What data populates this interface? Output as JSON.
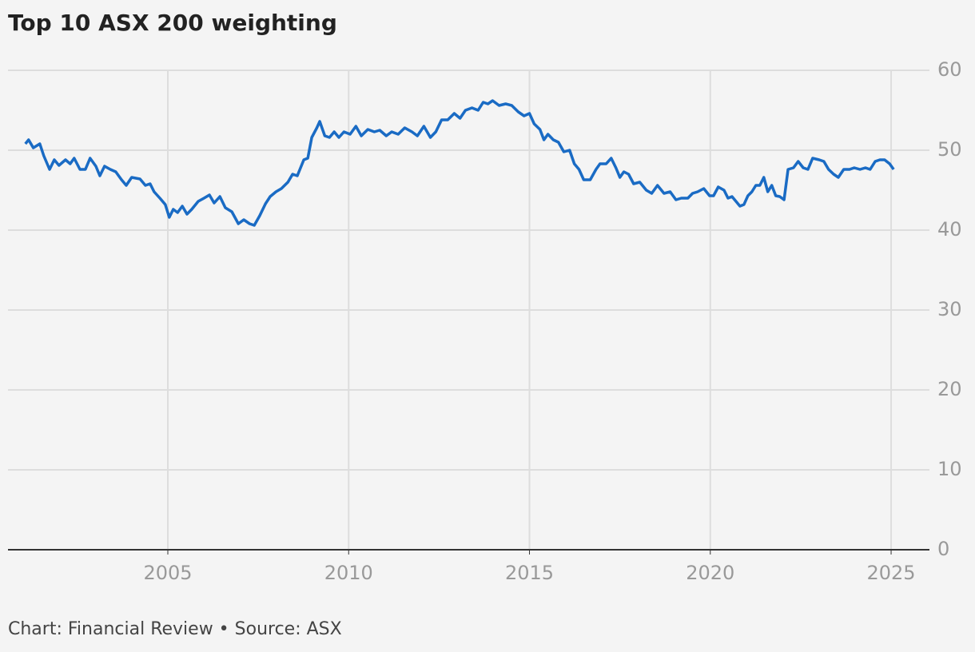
{
  "chart_data": {
    "type": "line",
    "title": "Top 10 ASX 200 weighting",
    "source": "Chart: Financial Review • Source: ASX",
    "x": [
      2001.06,
      2001.15,
      2001.28,
      2001.46,
      2001.57,
      2001.73,
      2001.86,
      2001.99,
      2002.17,
      2002.3,
      2002.41,
      2002.57,
      2002.72,
      2002.85,
      2003.01,
      2003.12,
      2003.25,
      2003.41,
      2003.56,
      2003.72,
      2003.85,
      2004.0,
      2004.23,
      2004.38,
      2004.51,
      2004.62,
      2004.78,
      2004.93,
      2005.04,
      2005.15,
      2005.27,
      2005.4,
      2005.53,
      2005.66,
      2005.84,
      2006.0,
      2006.15,
      2006.28,
      2006.44,
      2006.59,
      2006.77,
      2006.95,
      2007.1,
      2007.26,
      2007.39,
      2007.54,
      2007.7,
      2007.83,
      2007.99,
      2008.14,
      2008.32,
      2008.45,
      2008.58,
      2008.76,
      2008.87,
      2008.98,
      2009.12,
      2009.2,
      2009.34,
      2009.47,
      2009.6,
      2009.73,
      2009.87,
      2010.04,
      2010.2,
      2010.35,
      2010.53,
      2010.71,
      2010.86,
      2011.04,
      2011.19,
      2011.37,
      2011.55,
      2011.75,
      2011.9,
      2012.08,
      2012.26,
      2012.41,
      2012.57,
      2012.74,
      2012.92,
      2013.08,
      2013.23,
      2013.41,
      2013.58,
      2013.72,
      2013.85,
      2013.98,
      2014.16,
      2014.34,
      2014.51,
      2014.69,
      2014.85,
      2015.0,
      2015.13,
      2015.29,
      2015.4,
      2015.51,
      2015.66,
      2015.8,
      2015.95,
      2016.11,
      2016.24,
      2016.37,
      2016.5,
      2016.68,
      2016.84,
      2016.95,
      2017.12,
      2017.26,
      2017.39,
      2017.5,
      2017.61,
      2017.74,
      2017.88,
      2018.05,
      2018.23,
      2018.38,
      2018.54,
      2018.72,
      2018.89,
      2019.05,
      2019.2,
      2019.38,
      2019.51,
      2019.65,
      2019.82,
      2019.98,
      2020.09,
      2020.22,
      2020.38,
      2020.49,
      2020.6,
      2020.71,
      2020.82,
      2020.93,
      2021.04,
      2021.15,
      2021.26,
      2021.37,
      2021.48,
      2021.59,
      2021.7,
      2021.81,
      2021.92,
      2022.04,
      2022.15,
      2022.3,
      2022.43,
      2022.57,
      2022.7,
      2022.83,
      2023.01,
      2023.14,
      2023.27,
      2023.41,
      2023.54,
      2023.69,
      2023.85,
      2023.98,
      2024.14,
      2024.29,
      2024.42,
      2024.56,
      2024.69,
      2024.82,
      2024.96,
      2025.07
    ],
    "series": [
      {
        "name": "Top 10 weighting",
        "color": "#1a6bc4",
        "values": [
          50.8,
          51.3,
          50.3,
          50.8,
          49.3,
          47.6,
          48.8,
          48.1,
          48.8,
          48.3,
          49.0,
          47.6,
          47.6,
          49.0,
          48.0,
          46.8,
          48.0,
          47.6,
          47.3,
          46.3,
          45.6,
          46.6,
          46.4,
          45.6,
          45.8,
          44.8,
          44.0,
          43.2,
          41.6,
          42.6,
          42.2,
          43.0,
          42.0,
          42.6,
          43.6,
          44.0,
          44.4,
          43.4,
          44.2,
          42.8,
          42.3,
          40.8,
          41.3,
          40.8,
          40.6,
          41.8,
          43.3,
          44.2,
          44.8,
          45.2,
          46.0,
          47.0,
          46.8,
          48.8,
          49.0,
          51.6,
          52.8,
          53.6,
          51.8,
          51.6,
          52.3,
          51.6,
          52.3,
          52.0,
          53.0,
          51.8,
          52.6,
          52.3,
          52.5,
          51.8,
          52.3,
          52.0,
          52.8,
          52.3,
          51.8,
          53.0,
          51.6,
          52.3,
          53.8,
          53.8,
          54.6,
          54.0,
          55.0,
          55.3,
          55.0,
          56.0,
          55.8,
          56.2,
          55.6,
          55.8,
          55.6,
          54.8,
          54.3,
          54.6,
          53.3,
          52.6,
          51.3,
          52.0,
          51.3,
          51.0,
          49.8,
          50.0,
          48.3,
          47.6,
          46.3,
          46.3,
          47.6,
          48.3,
          48.3,
          49.0,
          47.8,
          46.6,
          47.3,
          47.0,
          45.8,
          46.0,
          45.0,
          44.6,
          45.6,
          44.6,
          44.8,
          43.8,
          44.0,
          44.0,
          44.6,
          44.8,
          45.2,
          44.3,
          44.3,
          45.4,
          45.0,
          44.0,
          44.2,
          43.6,
          43.0,
          43.2,
          44.3,
          44.8,
          45.6,
          45.6,
          46.6,
          44.8,
          45.6,
          44.3,
          44.2,
          43.8,
          47.6,
          47.8,
          48.6,
          47.8,
          47.6,
          49.0,
          48.8,
          48.6,
          47.6,
          47.0,
          46.6,
          47.6,
          47.6,
          47.8,
          47.6,
          47.8,
          47.6,
          48.6,
          48.8,
          48.8,
          48.3,
          47.6
        ]
      }
    ],
    "xlim": [
      2000.58,
      2026.06
    ],
    "xticks": [
      2005,
      2010,
      2015,
      2020,
      2025
    ],
    "ylim": [
      0,
      60
    ],
    "yticks": [
      0,
      10,
      20,
      30,
      40,
      50,
      60
    ],
    "grid": true
  }
}
